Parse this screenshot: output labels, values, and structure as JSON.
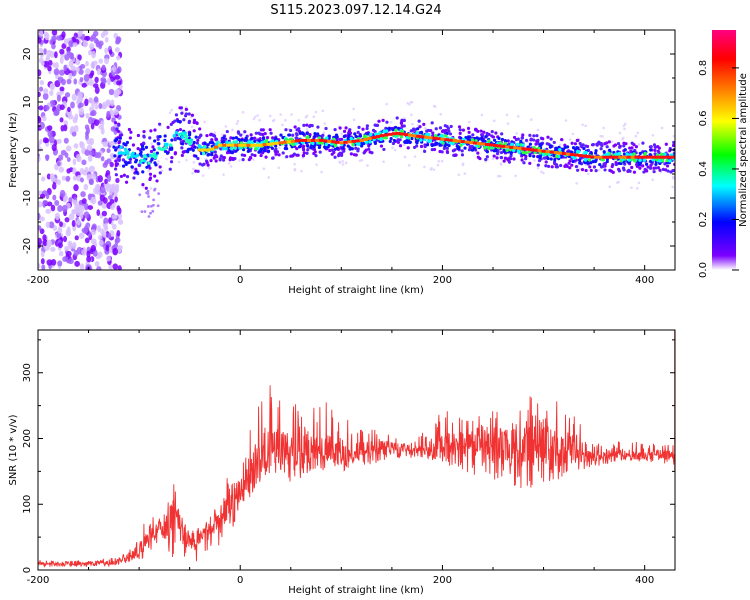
{
  "title": "S115.2023.097.12.14.G24",
  "chart_data": [
    {
      "type": "heatmap",
      "title": "S115.2023.097.12.14.G24",
      "xlabel": "Height of straight line (km)",
      "ylabel": "Frequency (Hz)",
      "xlim": [
        -200,
        430
      ],
      "ylim": [
        -25,
        25
      ],
      "x_ticks": [
        -200,
        0,
        200,
        400
      ],
      "y_ticks": [
        -20,
        -10,
        0,
        10,
        20
      ],
      "colorbar": {
        "label": "Normalized spectral amplitude",
        "range": [
          0,
          0.95
        ],
        "ticks": [
          "0.0",
          "0.2",
          "0.4",
          "0.6",
          "0.8"
        ],
        "colors": [
          "#ffffff",
          "#7b00ff",
          "#0000ff",
          "#00ffff",
          "#00ff00",
          "#ffff00",
          "#ff7f00",
          "#ff0000",
          "#ff0080"
        ]
      },
      "ridge": {
        "x": [
          -120,
          -110,
          -100,
          -90,
          -80,
          -70,
          -60,
          -50,
          -40,
          -30,
          -20,
          -10,
          0,
          20,
          40,
          60,
          80,
          100,
          120,
          140,
          155,
          170,
          190,
          210,
          230,
          250,
          270,
          290,
          310,
          330,
          350,
          370,
          390,
          410,
          430
        ],
        "y": [
          0,
          -1,
          -2,
          -2,
          0,
          1,
          4,
          2,
          0,
          0,
          1,
          1,
          1,
          1,
          1.5,
          2,
          2,
          1.5,
          2,
          3,
          3.5,
          3,
          2.5,
          2,
          1.5,
          1,
          0.5,
          0,
          -0.5,
          -1,
          -1.5,
          -1.5,
          -1.5,
          -1.5,
          -1.5
        ]
      }
    },
    {
      "type": "line",
      "xlabel": "Height of straight line (km)",
      "ylabel": "SNR (10 * v/v)",
      "xlim": [
        -200,
        430
      ],
      "ylim": [
        0,
        365
      ],
      "x_ticks": [
        -200,
        0,
        200,
        400
      ],
      "y_ticks": [
        0,
        100,
        200,
        300
      ],
      "color": "#f03232",
      "envelope": {
        "x": [
          -200,
          -150,
          -120,
          -110,
          -100,
          -90,
          -80,
          -70,
          -65,
          -60,
          -50,
          -40,
          -30,
          -20,
          -10,
          0,
          10,
          20,
          30,
          40,
          60,
          80,
          100,
          120,
          140,
          160,
          180,
          200,
          220,
          240,
          260,
          280,
          300,
          320,
          340,
          360,
          380,
          400,
          430
        ],
        "low": [
          5,
          5,
          5,
          10,
          15,
          20,
          30,
          20,
          15,
          10,
          10,
          10,
          20,
          40,
          60,
          80,
          100,
          120,
          130,
          130,
          140,
          150,
          150,
          155,
          165,
          170,
          170,
          160,
          150,
          140,
          130,
          120,
          130,
          140,
          150,
          160,
          165,
          165,
          160
        ],
        "mid": [
          10,
          10,
          12,
          20,
          30,
          50,
          60,
          70,
          90,
          70,
          40,
          50,
          60,
          80,
          110,
          130,
          150,
          170,
          190,
          180,
          180,
          180,
          180,
          180,
          185,
          185,
          180,
          190,
          195,
          195,
          190,
          190,
          200,
          190,
          180,
          175,
          175,
          175,
          175
        ],
        "high": [
          15,
          15,
          20,
          30,
          60,
          90,
          110,
          120,
          140,
          90,
          60,
          70,
          90,
          120,
          160,
          190,
          230,
          260,
          290,
          260,
          250,
          260,
          250,
          220,
          210,
          200,
          210,
          250,
          230,
          240,
          250,
          270,
          280,
          250,
          220,
          200,
          195,
          195,
          190
        ]
      }
    }
  ]
}
